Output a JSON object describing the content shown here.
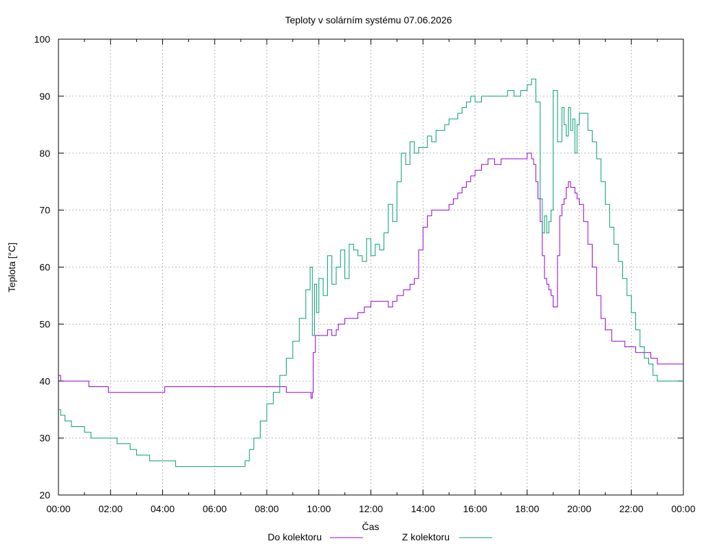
{
  "chart_data": {
    "type": "line",
    "title": "Teploty v solárním systému 07.06.2026",
    "xlabel": "Čas",
    "ylabel": "Teplota [°C]",
    "xlim": [
      "00:00",
      "24:00"
    ],
    "ylim": [
      20,
      100
    ],
    "x_ticks": [
      "00:00",
      "02:00",
      "04:00",
      "06:00",
      "08:00",
      "10:00",
      "12:00",
      "14:00",
      "16:00",
      "18:00",
      "20:00",
      "22:00",
      "00:00"
    ],
    "y_ticks": [
      20,
      30,
      40,
      50,
      60,
      70,
      80,
      90,
      100
    ],
    "grid": true,
    "legend_position": "bottom-center",
    "series": [
      {
        "name": "Do kolektoru",
        "color": "#9400d3",
        "x": [
          "00:00",
          "00:05",
          "00:10",
          "01:05",
          "01:10",
          "01:50",
          "01:55",
          "02:30",
          "04:00",
          "04:05",
          "05:00",
          "06:00",
          "07:00",
          "08:00",
          "08:40",
          "08:45",
          "09:30",
          "09:40",
          "09:42",
          "09:45",
          "09:47",
          "09:52",
          "10:00",
          "10:15",
          "10:20",
          "10:30",
          "10:40",
          "10:45",
          "11:00",
          "11:15",
          "11:30",
          "11:45",
          "12:00",
          "12:20",
          "12:30",
          "12:40",
          "12:50",
          "13:00",
          "13:15",
          "13:30",
          "13:35",
          "13:40",
          "13:50",
          "14:00",
          "14:10",
          "14:20",
          "14:30",
          "14:40",
          "15:00",
          "15:10",
          "15:20",
          "15:30",
          "15:40",
          "15:50",
          "16:00",
          "16:15",
          "16:30",
          "16:45",
          "17:00",
          "17:15",
          "17:30",
          "17:45",
          "18:00",
          "18:05",
          "18:10",
          "18:15",
          "18:20",
          "18:25",
          "18:30",
          "18:35",
          "18:40",
          "18:45",
          "18:50",
          "18:55",
          "19:00",
          "19:10",
          "19:15",
          "19:20",
          "19:25",
          "19:30",
          "19:35",
          "19:40",
          "19:45",
          "19:50",
          "19:55",
          "20:00",
          "20:10",
          "20:20",
          "20:30",
          "20:40",
          "20:50",
          "21:00",
          "21:15",
          "21:30",
          "21:45",
          "22:00",
          "22:10",
          "22:20",
          "22:30",
          "22:45",
          "23:00",
          "23:15",
          "23:30",
          "23:45",
          "24:00"
        ],
        "y": [
          41,
          40,
          40,
          40,
          39,
          39,
          38,
          38,
          38,
          39,
          39,
          39,
          39,
          39,
          39,
          38,
          38,
          38,
          37,
          38,
          45,
          48,
          48,
          48,
          49,
          48,
          49,
          50,
          51,
          51,
          52,
          53,
          54,
          54,
          54,
          53,
          54,
          55,
          56,
          57,
          57,
          58,
          63,
          67,
          69,
          70,
          70,
          70,
          71,
          72,
          73,
          74,
          75,
          76,
          77,
          78,
          79,
          78,
          79,
          79,
          79,
          79,
          80,
          80,
          79,
          78,
          75,
          72,
          68,
          62,
          58,
          57,
          56,
          55,
          53,
          62,
          69,
          71,
          72,
          74,
          75,
          74,
          74,
          73,
          72,
          71,
          68,
          64,
          60,
          55,
          51,
          49,
          47,
          47,
          46,
          46,
          45,
          45,
          45,
          44,
          43,
          43,
          43,
          43,
          43
        ]
      },
      {
        "name": "Z kolektoru",
        "color": "#009e73",
        "x": [
          "00:00",
          "00:05",
          "00:15",
          "00:30",
          "00:45",
          "01:00",
          "01:15",
          "01:30",
          "01:45",
          "02:00",
          "02:15",
          "02:30",
          "02:45",
          "03:00",
          "03:15",
          "03:30",
          "03:45",
          "04:00",
          "04:30",
          "05:00",
          "05:30",
          "06:00",
          "06:30",
          "07:00",
          "07:10",
          "07:20",
          "07:30",
          "07:45",
          "08:00",
          "08:15",
          "08:30",
          "08:45",
          "09:00",
          "09:15",
          "09:30",
          "09:40",
          "09:45",
          "09:50",
          "09:55",
          "10:00",
          "10:10",
          "10:20",
          "10:30",
          "10:40",
          "10:50",
          "11:00",
          "11:10",
          "11:20",
          "11:30",
          "11:40",
          "11:50",
          "12:00",
          "12:10",
          "12:20",
          "12:30",
          "12:40",
          "12:50",
          "13:00",
          "13:10",
          "13:20",
          "13:30",
          "13:40",
          "13:50",
          "14:00",
          "14:10",
          "14:20",
          "14:30",
          "14:40",
          "14:50",
          "15:00",
          "15:10",
          "15:20",
          "15:30",
          "15:40",
          "15:50",
          "16:00",
          "16:15",
          "16:30",
          "16:45",
          "17:00",
          "17:15",
          "17:30",
          "17:45",
          "18:00",
          "18:10",
          "18:20",
          "18:30",
          "18:35",
          "18:40",
          "18:45",
          "18:50",
          "18:55",
          "19:00",
          "19:10",
          "19:20",
          "19:25",
          "19:30",
          "19:35",
          "19:40",
          "19:45",
          "19:50",
          "19:55",
          "20:00",
          "20:10",
          "20:20",
          "20:30",
          "20:40",
          "20:50",
          "21:00",
          "21:10",
          "21:20",
          "21:30",
          "21:40",
          "21:50",
          "22:00",
          "22:10",
          "22:20",
          "22:30",
          "22:40",
          "22:50",
          "23:00",
          "23:10",
          "23:20",
          "23:30",
          "23:40",
          "23:50",
          "24:00"
        ],
        "y": [
          35,
          34,
          33,
          32,
          32,
          31,
          30,
          30,
          30,
          30,
          29,
          29,
          28,
          27,
          27,
          26,
          26,
          26,
          25,
          25,
          25,
          25,
          25,
          25,
          26,
          28,
          30,
          33,
          36,
          38,
          41,
          44,
          47,
          51,
          56,
          60,
          48,
          57,
          52,
          58,
          55,
          62,
          57,
          60,
          63,
          58,
          64,
          63,
          62,
          61,
          65,
          62,
          64,
          63,
          66,
          71,
          68,
          75,
          80,
          78,
          82,
          80,
          81,
          81,
          83,
          82,
          84,
          84,
          85,
          86,
          86,
          87,
          88,
          89,
          90,
          89,
          90,
          90,
          90,
          90,
          91,
          90,
          91,
          92,
          93,
          89,
          72,
          66,
          69,
          66,
          68,
          70,
          91,
          82,
          88,
          85,
          83,
          88,
          84,
          86,
          80,
          85,
          87,
          87,
          84,
          82,
          79,
          75,
          71,
          67,
          64,
          61,
          58,
          55,
          52,
          49,
          46,
          44,
          43,
          41,
          40,
          40,
          40,
          40,
          40,
          40,
          40
        ]
      }
    ]
  }
}
